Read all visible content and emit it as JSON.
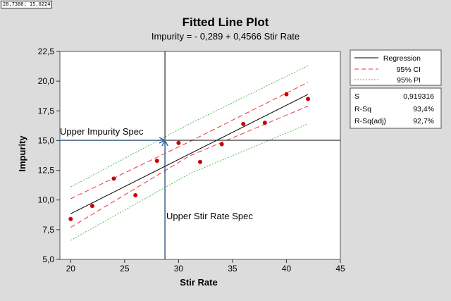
{
  "coord_readout": "28,7380; 15,0224",
  "chart_data": {
    "type": "scatter",
    "title": "Fitted Line Plot",
    "subtitle": "Impurity =  - 0,289 + 0,4566 Stir Rate",
    "xlabel": "Stir Rate",
    "ylabel": "Impurity",
    "xlim": [
      19,
      45
    ],
    "ylim": [
      5,
      22.5
    ],
    "xticks": [
      20,
      25,
      30,
      35,
      40,
      45
    ],
    "yticks": [
      5,
      7.5,
      10,
      12.5,
      15,
      17.5,
      20,
      22.5
    ],
    "xtick_labels": [
      "20",
      "25",
      "30",
      "35",
      "40",
      "45"
    ],
    "ytick_labels": [
      "5,0",
      "7,5",
      "10,0",
      "12,5",
      "15,0",
      "17,5",
      "20,0",
      "22,5"
    ],
    "grid": false,
    "points": {
      "x": [
        20,
        22,
        24,
        26,
        28,
        30,
        32,
        34,
        36,
        38,
        40,
        42
      ],
      "y": [
        8.4,
        9.5,
        11.8,
        10.4,
        13.3,
        14.8,
        13.2,
        14.7,
        16.4,
        16.5,
        18.9,
        18.5
      ],
      "color": "#cc0000"
    },
    "regression": {
      "intercept": -0.289,
      "slope": 0.4566,
      "x_range": [
        20,
        42
      ],
      "color": "#000000"
    },
    "ci_band": {
      "x": [
        20,
        31,
        42
      ],
      "lower": [
        7.7,
        13.7,
        17.9
      ],
      "upper": [
        10.1,
        14.9,
        19.9
      ],
      "color": "#ee3333"
    },
    "pi_band": {
      "x": [
        20,
        31,
        42
      ],
      "lower": [
        6.6,
        12.2,
        16.4
      ],
      "upper": [
        11.1,
        16.4,
        21.3
      ],
      "color": "#55bb55"
    },
    "reference_lines": {
      "vertical_x": 28.738,
      "horizontal_y": 15.0224
    },
    "annotations": [
      {
        "text": "Upper Impurity Spec",
        "anchor_x": 19,
        "anchor_y": 15
      },
      {
        "text": "Upper Stir Rate Spec",
        "anchor_x": 28.738,
        "anchor_y": 5
      }
    ],
    "legend": {
      "placement": "right",
      "entries": [
        {
          "label": "Regression",
          "color": "#000000",
          "style": "solid"
        },
        {
          "label": "95% CI",
          "color": "#ee3333",
          "style": "dashed"
        },
        {
          "label": "95% PI",
          "color": "#55bb55",
          "style": "dotted"
        }
      ]
    },
    "stats": [
      {
        "label": "S",
        "value": "0,919316"
      },
      {
        "label": "R-Sq",
        "value": "93,4%"
      },
      {
        "label": "R-Sq(adj)",
        "value": "92,7%"
      }
    ]
  }
}
